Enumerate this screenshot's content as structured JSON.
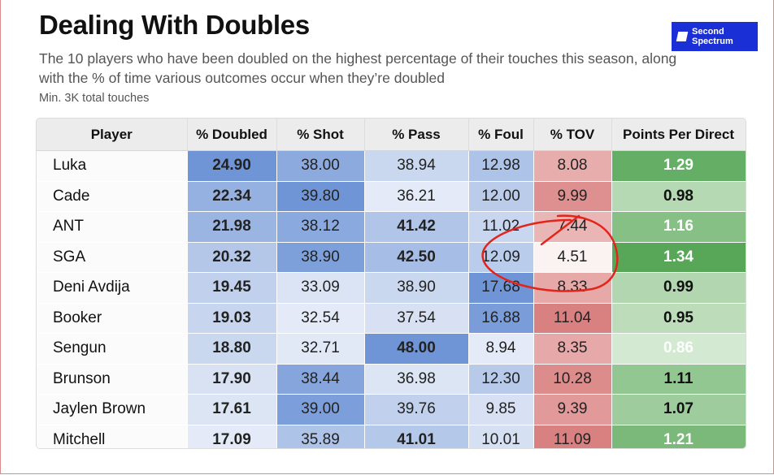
{
  "header": {
    "title": "Dealing With Doubles",
    "subtitle": "The 10 players who have been doubled on the highest percentage of their touches this season, along with the % of time various outcomes occur when they’re doubled",
    "note": "Min. 3K total touches"
  },
  "logo": {
    "text": "Second\nSpectrum",
    "color": "#1b2fd6"
  },
  "chart_data": {
    "type": "table",
    "columns": [
      "Player",
      "% Doubled",
      "% Shot",
      "% Pass",
      "% Foul",
      "% TOV",
      "Points Per Direct"
    ],
    "rows": [
      [
        "Luka",
        "24.90",
        "38.00",
        "38.94",
        "12.98",
        "8.08",
        "1.29"
      ],
      [
        "Cade",
        "22.34",
        "39.80",
        "36.21",
        "12.00",
        "9.99",
        "0.98"
      ],
      [
        "ANT",
        "21.98",
        "38.12",
        "41.42",
        "11.02",
        "7.44",
        "1.16"
      ],
      [
        "SGA",
        "20.32",
        "38.90",
        "42.50",
        "12.09",
        "4.51",
        "1.34"
      ],
      [
        "Deni Avdija",
        "19.45",
        "33.09",
        "38.90",
        "17.68",
        "8.33",
        "0.99"
      ],
      [
        "Booker",
        "19.03",
        "32.54",
        "37.54",
        "16.88",
        "11.04",
        "0.95"
      ],
      [
        "Sengun",
        "18.80",
        "32.71",
        "48.00",
        "8.94",
        "8.35",
        "0.86"
      ],
      [
        "Brunson",
        "17.90",
        "38.44",
        "36.98",
        "12.30",
        "10.28",
        "1.11"
      ],
      [
        "Jaylen Brown",
        "17.61",
        "39.00",
        "39.76",
        "9.85",
        "9.39",
        "1.07"
      ],
      [
        "Mitchell",
        "17.09",
        "35.89",
        "41.01",
        "10.01",
        "11.09",
        "1.21"
      ]
    ],
    "color_scales": {
      "blue_columns": [
        "% Doubled",
        "% Shot",
        "% Pass",
        "% Foul"
      ],
      "blue_low": "#f4f6fb",
      "blue_high": "#6f95d6",
      "tov_low": "#fbeceb",
      "tov_high": "#d98080",
      "ppd_low": "#eaf5e6",
      "ppd_high": "#58a758"
    },
    "annotation": {
      "type": "hand-drawn red circle around SGA % TOV",
      "color": "#e3241b"
    }
  }
}
